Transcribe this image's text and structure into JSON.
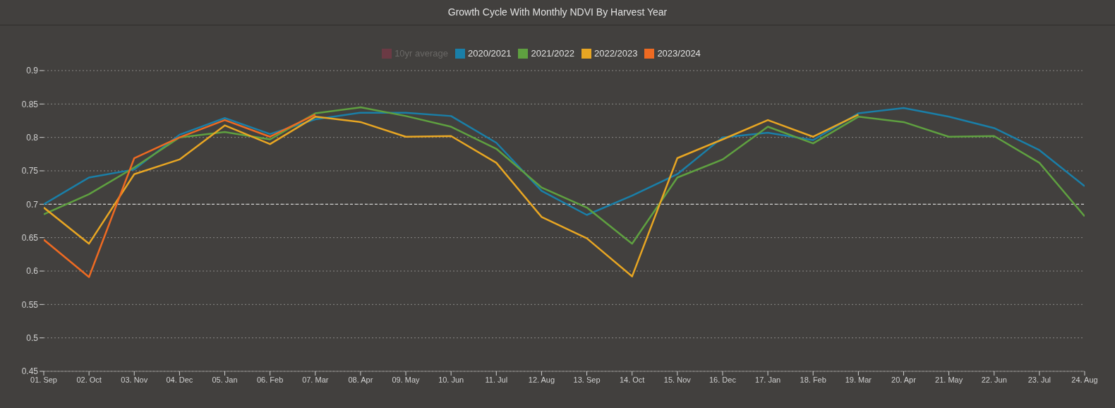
{
  "chart_data": {
    "type": "line",
    "title": "Growth Cycle With Monthly NDVI By Harvest Year",
    "categories": [
      "01. Sep",
      "02. Oct",
      "03. Nov",
      "04. Dec",
      "05. Jan",
      "06. Feb",
      "07. Mar",
      "08. Apr",
      "09. May",
      "10. Jun",
      "11. Jul",
      "12. Aug",
      "13. Sep",
      "14. Oct",
      "15. Nov",
      "16. Dec",
      "17. Jan",
      "18. Feb",
      "19. Mar",
      "20. Apr",
      "21. May",
      "22. Jun",
      "23. Jul",
      "24. Aug"
    ],
    "series": [
      {
        "name": "10yr average",
        "color": "#6b3a44",
        "values": [
          null,
          null,
          null,
          null,
          null,
          null,
          null,
          null,
          null,
          null,
          null,
          null,
          null,
          null,
          null,
          null,
          null,
          null,
          null,
          null,
          null,
          null,
          null,
          null
        ]
      },
      {
        "name": "2020/2021",
        "color": "#1a7fa8",
        "values": [
          0.7,
          0.74,
          0.752,
          0.804,
          0.829,
          0.805,
          0.827,
          0.837,
          0.837,
          0.832,
          0.792,
          0.72,
          0.684,
          0.713,
          0.745,
          0.8,
          0.807,
          0.796,
          0.836,
          0.844,
          0.831,
          0.814,
          0.781,
          0.727
        ]
      },
      {
        "name": "2021/2022",
        "color": "#5fa040",
        "values": [
          0.685,
          0.715,
          0.755,
          0.8,
          0.808,
          0.797,
          0.836,
          0.845,
          0.832,
          0.816,
          0.783,
          0.725,
          0.695,
          0.641,
          0.74,
          0.767,
          0.816,
          0.791,
          0.831,
          0.823,
          0.801,
          0.802,
          0.762,
          0.682
        ]
      },
      {
        "name": "2022/2023",
        "color": "#e8a623",
        "values": [
          0.695,
          0.641,
          0.745,
          0.767,
          0.818,
          0.79,
          0.831,
          0.823,
          0.801,
          0.802,
          0.762,
          0.681,
          0.649,
          0.592,
          0.769,
          0.797,
          0.826,
          0.801,
          0.834,
          null,
          null,
          null,
          null,
          null
        ]
      },
      {
        "name": "2023/2024",
        "color": "#ee6a22",
        "values": [
          0.647,
          0.591,
          0.769,
          0.8,
          0.826,
          0.801,
          0.834,
          null,
          null,
          null,
          null,
          null,
          null,
          null,
          null,
          null,
          null,
          null,
          null,
          null,
          null,
          null,
          null,
          null
        ]
      }
    ],
    "ylim": [
      0.45,
      0.9
    ],
    "yticks": [
      0.45,
      0.5,
      0.55,
      0.6,
      0.65,
      0.7,
      0.75,
      0.8,
      0.85,
      0.9
    ],
    "grid": "y",
    "legend": "top",
    "ref_lines": [
      {
        "axis": "y",
        "value": 0.7,
        "color": "#cfcfcf",
        "line_style": "dashed"
      }
    ]
  }
}
